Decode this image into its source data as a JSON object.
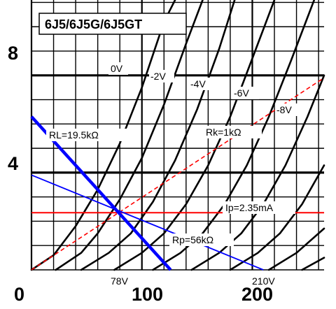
{
  "chart_data": {
    "type": "line",
    "title": "6J5/6J5G/6J5GT",
    "x_ticks": [
      {
        "value": 0,
        "label": "0"
      },
      {
        "value": 100,
        "label": "100"
      },
      {
        "value": 200,
        "label": "200"
      }
    ],
    "y_ticks": [
      {
        "value": 4,
        "label": "4"
      },
      {
        "value": 8,
        "label": "8"
      }
    ],
    "xlim": [
      0,
      265
    ],
    "ylim": [
      0,
      11.1
    ],
    "grid": true,
    "grid_x_step": 20,
    "grid_y_step": 1,
    "series": [
      {
        "name": "0V",
        "points": [
          [
            0,
            0
          ],
          [
            20,
            0.6
          ],
          [
            40,
            1.8
          ],
          [
            60,
            3.3
          ],
          [
            80,
            5.2
          ],
          [
            100,
            7.5
          ],
          [
            120,
            10.2
          ],
          [
            130,
            11.1
          ]
        ]
      },
      {
        "name": "-2V",
        "points": [
          [
            22,
            0
          ],
          [
            45,
            0.7
          ],
          [
            60,
            1.5
          ],
          [
            80,
            2.9
          ],
          [
            100,
            4.6
          ],
          [
            120,
            6.8
          ],
          [
            140,
            9.3
          ],
          [
            155,
            11.1
          ]
        ]
      },
      {
        "name": "-4V",
        "points": [
          [
            45,
            0
          ],
          [
            70,
            0.7
          ],
          [
            90,
            1.5
          ],
          [
            110,
            2.8
          ],
          [
            130,
            4.5
          ],
          [
            150,
            6.6
          ],
          [
            170,
            9.1
          ],
          [
            184,
            11.1
          ]
        ]
      },
      {
        "name": "-6V",
        "points": [
          [
            75,
            0
          ],
          [
            100,
            0.7
          ],
          [
            120,
            1.5
          ],
          [
            140,
            2.7
          ],
          [
            160,
            4.3
          ],
          [
            180,
            6.3
          ],
          [
            200,
            8.7
          ],
          [
            220,
            11.1
          ]
        ]
      },
      {
        "name": "-8V",
        "points": [
          [
            110,
            0
          ],
          [
            135,
            0.7
          ],
          [
            155,
            1.5
          ],
          [
            175,
            2.7
          ],
          [
            195,
            4.3
          ],
          [
            215,
            6.3
          ],
          [
            235,
            8.6
          ],
          [
            256,
            11.1
          ]
        ]
      },
      {
        "name": "",
        "points": [
          [
            145,
            0
          ],
          [
            170,
            0.7
          ],
          [
            190,
            1.5
          ],
          [
            210,
            2.7
          ],
          [
            230,
            4.3
          ],
          [
            250,
            6.3
          ],
          [
            265,
            8.0
          ]
        ]
      },
      {
        "name": "",
        "points": [
          [
            180,
            0
          ],
          [
            205,
            0.7
          ],
          [
            225,
            1.5
          ],
          [
            245,
            2.7
          ],
          [
            265,
            4.3
          ]
        ]
      },
      {
        "name": "",
        "points": [
          [
            215,
            0
          ],
          [
            240,
            0.7
          ],
          [
            265,
            1.7
          ]
        ]
      },
      {
        "name": "",
        "points": [
          [
            245,
            0
          ],
          [
            265,
            0.5
          ]
        ]
      }
    ],
    "load_lines": [
      {
        "name": "RL=19.5kΩ",
        "points": [
          [
            0,
            6.3
          ],
          [
            126,
            0
          ]
        ],
        "color": "#0000ff",
        "width": "thick"
      },
      {
        "name": "Rp=56kΩ",
        "points": [
          [
            0,
            3.9
          ],
          [
            210,
            0
          ]
        ],
        "color": "#0000ff",
        "width": "thin"
      }
    ],
    "bias_line": {
      "name": "Rk=1kΩ",
      "points": [
        [
          0,
          0
        ],
        [
          265,
          7.9
        ]
      ],
      "color": "#ff0000",
      "style": "dashed"
    },
    "ip_line": {
      "name": "Ip=2.35mA",
      "y": 2.35,
      "color": "#ff0000"
    },
    "curve_labels": [
      "0V",
      "-2V",
      "-4V",
      "-6V",
      "-8V"
    ],
    "annotations": {
      "rl": "RL=19.5kΩ",
      "rk": "Rk=1kΩ",
      "ip": "Ip=2.35mA",
      "rp": "Rp=56kΩ",
      "v78": "78V",
      "v210": "210V"
    }
  }
}
